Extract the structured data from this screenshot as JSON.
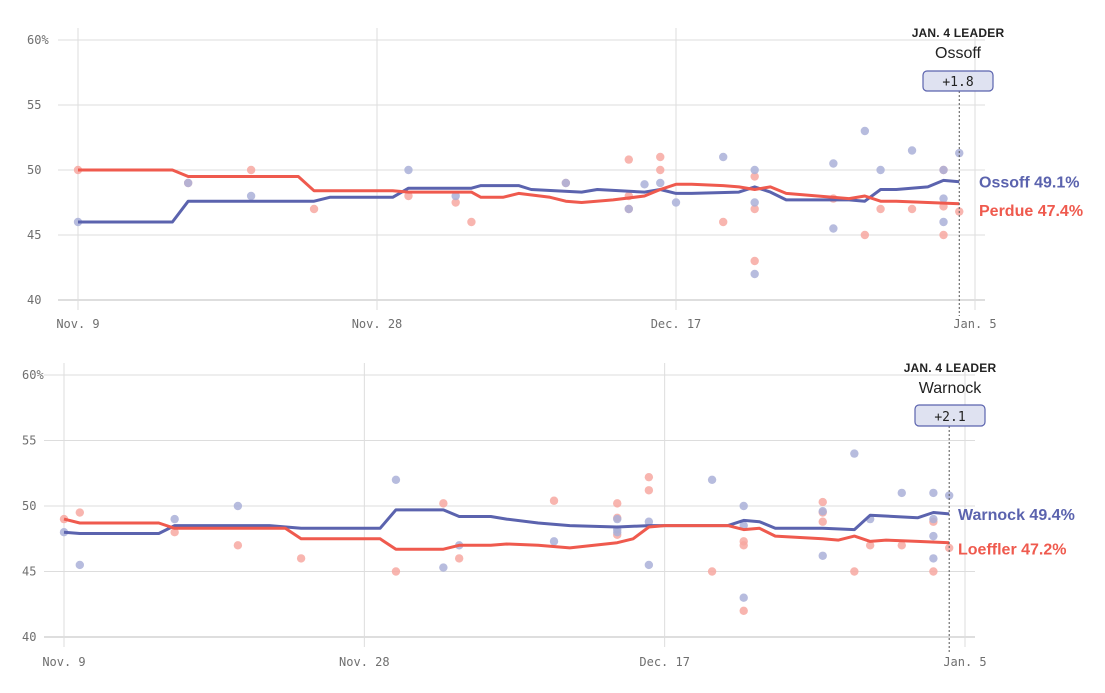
{
  "colors": {
    "dem": "#5b63ae",
    "rep": "#ef5a4e",
    "dem_dot": "#aab0d8",
    "rep_dot": "#f7a8a1",
    "grid": "#dddddd",
    "badge_fill": "#dfe2f1"
  },
  "chart_data": [
    {
      "type": "line",
      "title": "",
      "ylim": [
        40,
        60
      ],
      "yticks": [
        "60%",
        "55",
        "50",
        "45",
        "40"
      ],
      "ytick_values": [
        60,
        55,
        50,
        45,
        40
      ],
      "xlim": [
        0,
        57
      ],
      "xticks": [
        "Nov. 9",
        "Nov. 28",
        "Dec. 17",
        "Jan. 5"
      ],
      "xtick_values": [
        0,
        19,
        38,
        57
      ],
      "grid": true,
      "leader": {
        "heading": "JAN. 4 LEADER",
        "name": "Ossoff",
        "margin": "+1.8"
      },
      "leader_day": 56,
      "series": [
        {
          "name": "Ossoff",
          "party": "dem",
          "end_label": "Ossoff 49.1%",
          "line": [
            [
              0,
              46.0
            ],
            [
              6,
              46.0
            ],
            [
              7,
              47.6
            ],
            [
              10,
              47.6
            ],
            [
              15,
              47.6
            ],
            [
              16,
              47.9
            ],
            [
              20,
              47.9
            ],
            [
              21,
              48.6
            ],
            [
              25,
              48.6
            ],
            [
              25.6,
              48.8
            ],
            [
              28,
              48.8
            ],
            [
              28.8,
              48.5
            ],
            [
              32,
              48.3
            ],
            [
              33,
              48.5
            ],
            [
              36,
              48.3
            ],
            [
              37,
              48.5
            ],
            [
              38,
              48.2
            ],
            [
              39,
              48.2
            ],
            [
              42,
              48.3
            ],
            [
              43,
              48.7
            ],
            [
              44,
              48.3
            ],
            [
              45,
              47.7
            ],
            [
              49,
              47.7
            ],
            [
              50,
              47.6
            ],
            [
              51,
              48.5
            ],
            [
              52,
              48.5
            ],
            [
              54,
              48.7
            ],
            [
              55,
              49.2
            ],
            [
              56,
              49.1
            ]
          ],
          "polls": [
            [
              0,
              46
            ],
            [
              7,
              49
            ],
            [
              11,
              48
            ],
            [
              21,
              50
            ],
            [
              24,
              48
            ],
            [
              31,
              49
            ],
            [
              35,
              47
            ],
            [
              37,
              49
            ],
            [
              41,
              51
            ],
            [
              43,
              50
            ],
            [
              43,
              47.5
            ],
            [
              43,
              42
            ],
            [
              48,
              50.5
            ],
            [
              48,
              45.5
            ],
            [
              50,
              53
            ],
            [
              51,
              50
            ],
            [
              53,
              51.5
            ],
            [
              55,
              50
            ],
            [
              55,
              46
            ],
            [
              55,
              47.8
            ],
            [
              56,
              51.3
            ],
            [
              36,
              48.9
            ],
            [
              38,
              47.5
            ]
          ]
        },
        {
          "name": "Perdue",
          "party": "rep",
          "end_label": "Perdue 47.4%",
          "line": [
            [
              0,
              50.0
            ],
            [
              6,
              50.0
            ],
            [
              7,
              49.5
            ],
            [
              10,
              49.5
            ],
            [
              14,
              49.5
            ],
            [
              15,
              48.4
            ],
            [
              20,
              48.4
            ],
            [
              21,
              48.3
            ],
            [
              25,
              48.3
            ],
            [
              25.6,
              47.9
            ],
            [
              27,
              47.9
            ],
            [
              28,
              48.2
            ],
            [
              30,
              47.9
            ],
            [
              31,
              47.6
            ],
            [
              32,
              47.5
            ],
            [
              34,
              47.7
            ],
            [
              36,
              48.0
            ],
            [
              37,
              48.5
            ],
            [
              38,
              48.9
            ],
            [
              39,
              48.9
            ],
            [
              41,
              48.8
            ],
            [
              42,
              48.7
            ],
            [
              43,
              48.5
            ],
            [
              44,
              48.7
            ],
            [
              45,
              48.2
            ],
            [
              47,
              48.0
            ],
            [
              49,
              47.8
            ],
            [
              50,
              48.0
            ],
            [
              51,
              47.6
            ],
            [
              52,
              47.6
            ],
            [
              54,
              47.5
            ],
            [
              56,
              47.4
            ]
          ],
          "polls": [
            [
              0,
              50
            ],
            [
              7,
              49
            ],
            [
              11,
              50
            ],
            [
              15,
              47
            ],
            [
              21,
              48
            ],
            [
              24,
              47.5
            ],
            [
              25,
              46
            ],
            [
              31,
              49
            ],
            [
              35,
              47
            ],
            [
              35,
              48
            ],
            [
              35,
              50.8
            ],
            [
              37,
              51
            ],
            [
              37,
              50
            ],
            [
              43,
              49.5
            ],
            [
              43,
              47
            ],
            [
              43,
              43
            ],
            [
              48,
              47.8
            ],
            [
              50,
              45
            ],
            [
              51,
              47
            ],
            [
              53,
              47
            ],
            [
              55,
              50
            ],
            [
              55,
              47.2
            ],
            [
              55,
              45
            ],
            [
              56,
              46.8
            ],
            [
              41,
              46
            ]
          ]
        }
      ]
    },
    {
      "type": "line",
      "title": "",
      "ylim": [
        40,
        60
      ],
      "yticks": [
        "60%",
        "55",
        "50",
        "45",
        "40"
      ],
      "ytick_values": [
        60,
        55,
        50,
        45,
        40
      ],
      "xlim": [
        0,
        57
      ],
      "xticks": [
        "Nov. 9",
        "Nov. 28",
        "Dec. 17",
        "Jan. 5"
      ],
      "xtick_values": [
        0,
        19,
        38,
        57
      ],
      "grid": true,
      "leader": {
        "heading": "JAN. 4 LEADER",
        "name": "Warnock",
        "margin": "+2.1"
      },
      "leader_day": 56,
      "series": [
        {
          "name": "Warnock",
          "party": "dem",
          "end_label": "Warnock 49.4%",
          "line": [
            [
              0,
              48.0
            ],
            [
              1,
              47.9
            ],
            [
              6,
              47.9
            ],
            [
              7,
              48.5
            ],
            [
              13,
              48.5
            ],
            [
              15,
              48.3
            ],
            [
              20,
              48.3
            ],
            [
              21,
              49.7
            ],
            [
              24,
              49.7
            ],
            [
              25,
              49.2
            ],
            [
              27,
              49.2
            ],
            [
              28,
              49.0
            ],
            [
              30,
              48.7
            ],
            [
              32,
              48.5
            ],
            [
              35,
              48.4
            ],
            [
              37,
              48.5
            ],
            [
              40,
              48.5
            ],
            [
              42,
              48.5
            ],
            [
              43,
              48.9
            ],
            [
              44,
              48.8
            ],
            [
              45,
              48.3
            ],
            [
              48,
              48.3
            ],
            [
              50,
              48.2
            ],
            [
              51,
              49.3
            ],
            [
              54,
              49.1
            ],
            [
              55,
              49.5
            ],
            [
              56,
              49.4
            ]
          ],
          "polls": [
            [
              0,
              48
            ],
            [
              1,
              45.5
            ],
            [
              7,
              49
            ],
            [
              11,
              50
            ],
            [
              21,
              52
            ],
            [
              24,
              45.3
            ],
            [
              25,
              47
            ],
            [
              31,
              47.3
            ],
            [
              35,
              48
            ],
            [
              35,
              48.2
            ],
            [
              35,
              49
            ],
            [
              37,
              48.8
            ],
            [
              37,
              45.5
            ],
            [
              41,
              52
            ],
            [
              43,
              50
            ],
            [
              43,
              48.5
            ],
            [
              43,
              43
            ],
            [
              48,
              46.2
            ],
            [
              48,
              49.6
            ],
            [
              50,
              54
            ],
            [
              51,
              49
            ],
            [
              53,
              51
            ],
            [
              55,
              51
            ],
            [
              55,
              49
            ],
            [
              55,
              46
            ],
            [
              55,
              47.7
            ],
            [
              56,
              50.8
            ]
          ]
        },
        {
          "name": "Loeffler",
          "party": "rep",
          "end_label": "Loeffler 47.2%",
          "line": [
            [
              0,
              49.0
            ],
            [
              1,
              48.7
            ],
            [
              6,
              48.7
            ],
            [
              7,
              48.3
            ],
            [
              14,
              48.3
            ],
            [
              15,
              47.5
            ],
            [
              20,
              47.5
            ],
            [
              21,
              46.7
            ],
            [
              24,
              46.7
            ],
            [
              25,
              47.0
            ],
            [
              27,
              47.0
            ],
            [
              28,
              47.1
            ],
            [
              30,
              47.0
            ],
            [
              32,
              46.8
            ],
            [
              35,
              47.2
            ],
            [
              36,
              47.5
            ],
            [
              37,
              48.4
            ],
            [
              38,
              48.5
            ],
            [
              42,
              48.5
            ],
            [
              43,
              48.2
            ],
            [
              44,
              48.3
            ],
            [
              45,
              47.7
            ],
            [
              48,
              47.5
            ],
            [
              49,
              47.4
            ],
            [
              50,
              47.7
            ],
            [
              51,
              47.3
            ],
            [
              52,
              47.4
            ],
            [
              54,
              47.3
            ],
            [
              56,
              47.2
            ]
          ],
          "polls": [
            [
              0,
              49
            ],
            [
              1,
              49.5
            ],
            [
              7,
              48
            ],
            [
              11,
              47
            ],
            [
              15,
              46
            ],
            [
              21,
              45
            ],
            [
              24,
              50.2
            ],
            [
              25,
              46
            ],
            [
              31,
              50.4
            ],
            [
              35,
              50.2
            ],
            [
              35,
              49.1
            ],
            [
              35,
              47.8
            ],
            [
              37,
              52.2
            ],
            [
              37,
              51.2
            ],
            [
              41,
              45
            ],
            [
              43,
              47.3
            ],
            [
              43,
              47
            ],
            [
              43,
              42
            ],
            [
              48,
              50.3
            ],
            [
              48,
              48.8
            ],
            [
              48,
              49.5
            ],
            [
              50,
              45
            ],
            [
              51,
              47
            ],
            [
              53,
              47
            ],
            [
              55,
              48.8
            ],
            [
              55,
              45
            ],
            [
              56,
              46.8
            ]
          ]
        }
      ]
    }
  ]
}
